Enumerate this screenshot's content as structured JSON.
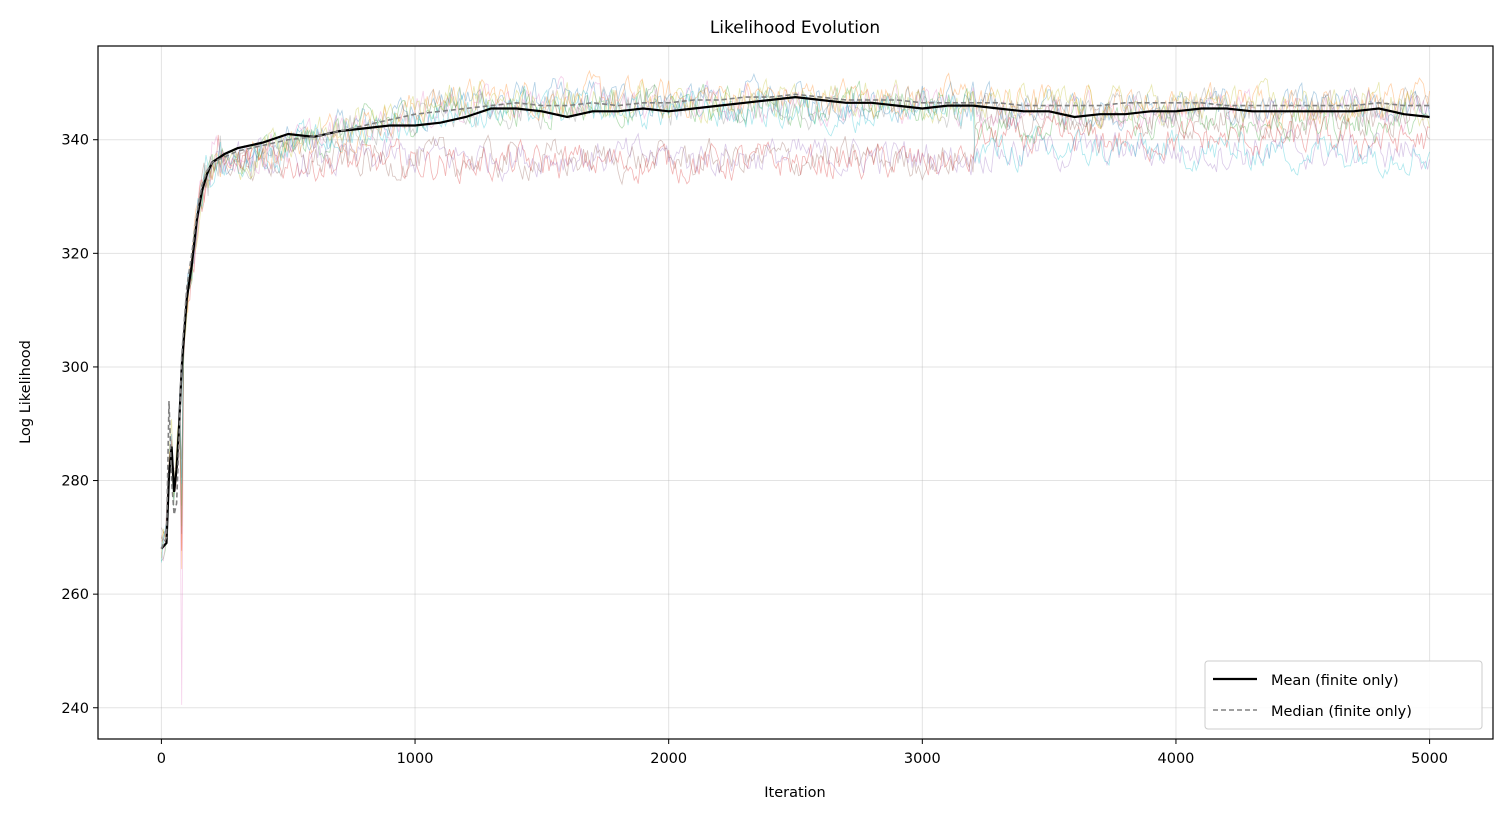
{
  "chart_data": {
    "type": "line",
    "title": "Likelihood Evolution",
    "xlabel": "Iteration",
    "ylabel": "Log Likelihood",
    "xlim": [
      -250,
      5250
    ],
    "ylim": [
      234.5,
      356.5
    ],
    "xticks": [
      0,
      1000,
      2000,
      3000,
      4000,
      5000
    ],
    "yticks": [
      240,
      260,
      280,
      300,
      320,
      340
    ],
    "grid": true,
    "legend_position": "lower-right",
    "series": [
      {
        "name": "Mean (finite only)",
        "color": "#000000",
        "style": "solid",
        "x": [
          0,
          20,
          30,
          40,
          50,
          60,
          70,
          80,
          90,
          100,
          120,
          140,
          160,
          180,
          200,
          250,
          300,
          400,
          500,
          600,
          700,
          800,
          900,
          1000,
          1100,
          1200,
          1300,
          1400,
          1500,
          1600,
          1700,
          1800,
          1900,
          2000,
          2100,
          2200,
          2300,
          2400,
          2500,
          2600,
          2700,
          2800,
          2900,
          3000,
          3100,
          3200,
          3300,
          3400,
          3500,
          3600,
          3700,
          3800,
          3900,
          4000,
          4100,
          4200,
          4300,
          4400,
          4500,
          4600,
          4700,
          4800,
          4900,
          5000
        ],
        "values": [
          268,
          269,
          281,
          286,
          278,
          282,
          290,
          300,
          306,
          312,
          318,
          326,
          331,
          334,
          336,
          337.5,
          338.5,
          339.5,
          341,
          340.5,
          341.5,
          342,
          342.5,
          342.5,
          343,
          344,
          345.5,
          345.5,
          345,
          344,
          345,
          345,
          345.5,
          345,
          345.5,
          346,
          346.5,
          347,
          347.5,
          347,
          346.5,
          346.5,
          346,
          345.5,
          346,
          346,
          345.5,
          345,
          345,
          344,
          344.5,
          344.5,
          345,
          345,
          345.5,
          345.5,
          345,
          345,
          345,
          345,
          345,
          345.5,
          344.5,
          344
        ]
      },
      {
        "name": "Median (finite only)",
        "color": "#808080",
        "style": "dashed",
        "x": [
          0,
          20,
          30,
          40,
          50,
          60,
          70,
          80,
          90,
          100,
          120,
          140,
          160,
          180,
          200,
          250,
          300,
          400,
          500,
          600,
          700,
          800,
          900,
          1000,
          1100,
          1200,
          1300,
          1400,
          1500,
          1600,
          1700,
          1800,
          1900,
          2000,
          2100,
          2200,
          2300,
          2400,
          2500,
          2600,
          2700,
          2800,
          2900,
          3000,
          3100,
          3200,
          3300,
          3400,
          3500,
          3600,
          3700,
          3800,
          3900,
          4000,
          4100,
          4200,
          4300,
          4400,
          4500,
          4600,
          4700,
          4800,
          4900,
          5000
        ],
        "values": [
          268,
          270,
          294,
          280,
          274,
          276,
          288,
          302,
          308,
          314,
          320,
          327,
          332,
          334.5,
          336,
          337,
          338,
          339,
          340,
          340.5,
          341.5,
          342.5,
          343.5,
          344.5,
          345,
          345.5,
          346,
          346.5,
          346,
          346,
          346.5,
          346,
          346.5,
          346.5,
          347,
          347,
          347.5,
          347.5,
          348,
          347.5,
          347,
          347,
          347,
          346.5,
          346.5,
          346.5,
          346.5,
          346,
          346,
          346,
          346,
          346.5,
          346.5,
          346.5,
          346.5,
          346,
          346,
          346,
          346,
          346,
          346,
          346.5,
          346,
          346
        ]
      }
    ]
  },
  "individual_chains": {
    "colors": [
      "#1f77b4",
      "#ff7f0e",
      "#2ca02c",
      "#d62728",
      "#9467bd",
      "#8c564b",
      "#e377c2",
      "#7f7f7f",
      "#bcbd22",
      "#17becf"
    ],
    "plateaus": [
      347,
      347.5,
      346,
      336,
      337,
      336.5,
      346.5,
      345.5,
      347,
      345
    ],
    "late_plateaus": [
      345.5,
      346.5,
      343,
      340,
      338,
      344,
      345,
      345.5,
      346,
      338
    ],
    "dip_values": [
      270,
      265,
      275,
      268,
      272,
      280,
      240,
      285,
      270,
      278
    ]
  }
}
